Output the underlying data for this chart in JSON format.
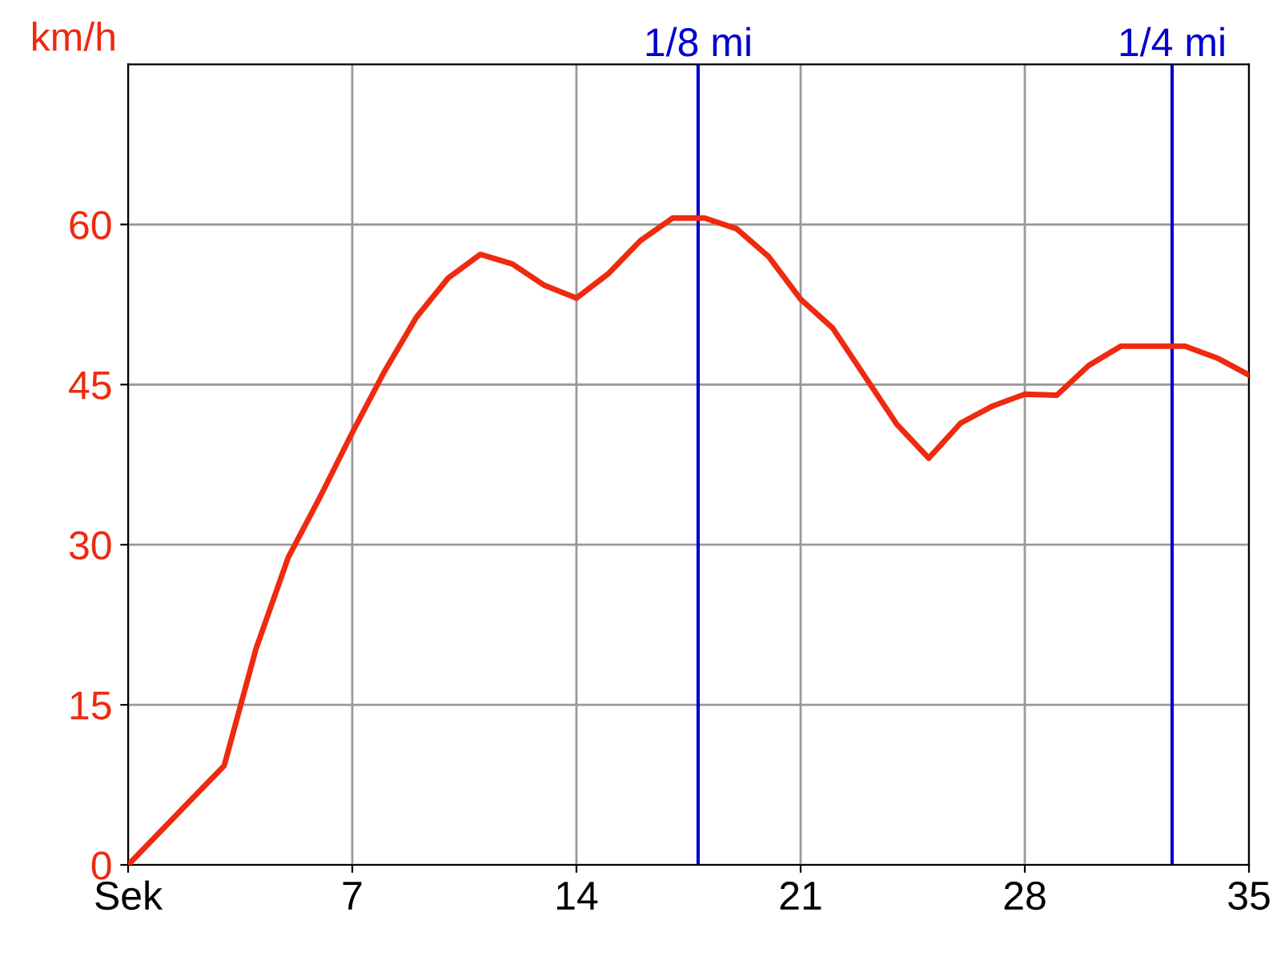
{
  "chart_data": {
    "type": "line",
    "ylabel": "km/h",
    "x": [
      0,
      3,
      4,
      5,
      6,
      7,
      8,
      9,
      10,
      11,
      12,
      13,
      14,
      15,
      16,
      17,
      18,
      19,
      20,
      21,
      22,
      23,
      24,
      25,
      26,
      27,
      28,
      29,
      30,
      31,
      32,
      33,
      34,
      35
    ],
    "series": [
      {
        "color": "#ee2a10",
        "values": [
          0,
          9.3,
          20.3,
          28.8,
          34.5,
          40.5,
          46.2,
          51.3,
          55,
          57.2,
          56.3,
          54.3,
          53.1,
          55.4,
          58.5,
          60.6,
          60.6,
          59.6,
          57,
          53,
          50.3,
          45.8,
          41.3,
          38.1,
          41.4,
          43,
          44.1,
          44,
          46.8,
          48.6,
          48.6,
          48.6,
          47.5,
          45.9
        ]
      }
    ],
    "xlim": [
      0,
      35
    ],
    "xticks": [
      {
        "value": 0,
        "label": "Sek"
      },
      7,
      14,
      21,
      28,
      35
    ],
    "ylim": [
      0,
      75
    ],
    "yticks": [
      0,
      15,
      30,
      45,
      60
    ],
    "ref_lines": [
      {
        "axis": "x",
        "value": 17.8,
        "label": "1/8 mi",
        "color": "#0000cc"
      },
      {
        "axis": "x",
        "value": 32.6,
        "label": "1/4 mi",
        "color": "#0000cc"
      }
    ],
    "grid": true,
    "marker": "none",
    "line_style": "solid"
  }
}
